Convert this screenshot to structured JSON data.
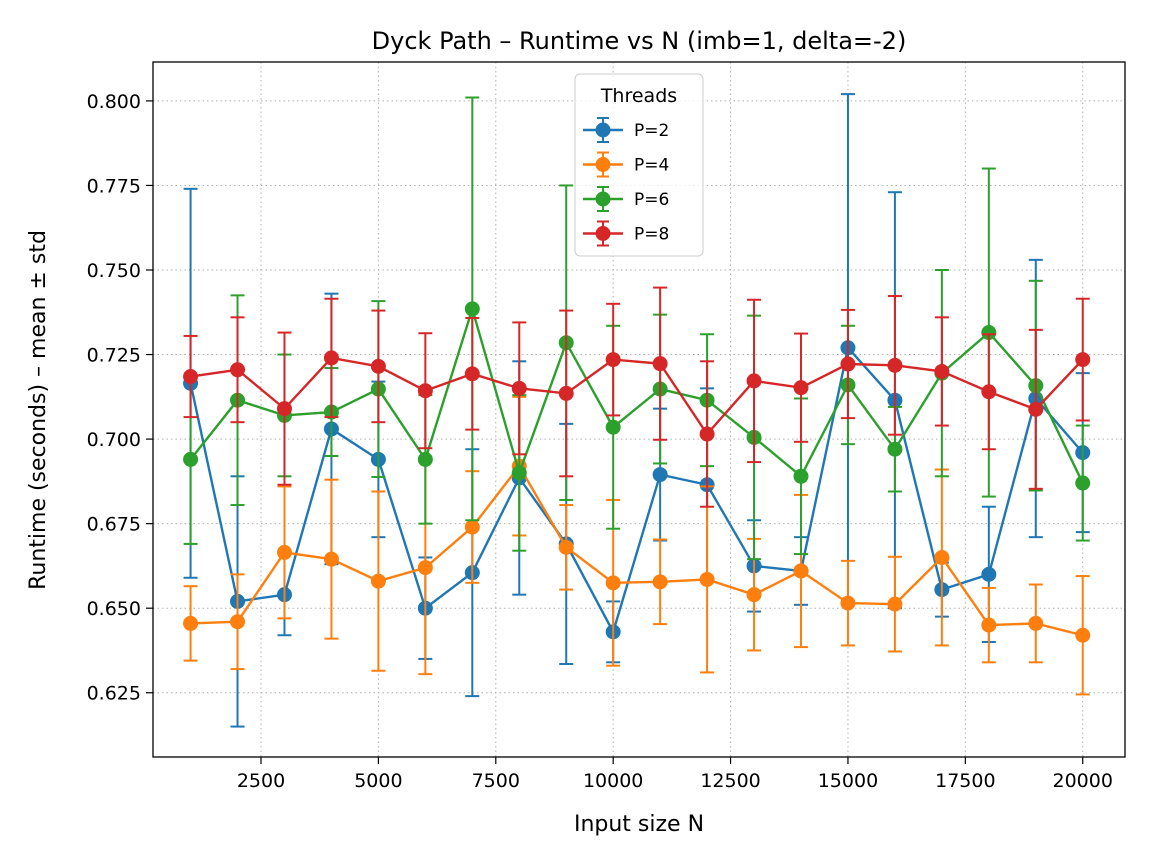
{
  "chart_data": {
    "type": "line",
    "title": "Dyck Path – Runtime vs N (imb=1, delta=-2)",
    "xlabel": "Input size N",
    "ylabel": "Runtime (seconds) – mean ± std",
    "xlim": [
      200,
      20900
    ],
    "ylim": [
      0.606,
      0.8115
    ],
    "xticks": [
      2500,
      5000,
      7500,
      10000,
      12500,
      15000,
      17500,
      20000
    ],
    "yticks": [
      0.625,
      0.65,
      0.675,
      0.7,
      0.725,
      0.75,
      0.775,
      0.8
    ],
    "ytick_labels": [
      "0.625",
      "0.650",
      "0.675",
      "0.700",
      "0.725",
      "0.750",
      "0.775",
      "0.800"
    ],
    "grid": true,
    "grid_style": "dotted",
    "legend": {
      "title": "Threads",
      "position": "upper center"
    },
    "x": [
      1000,
      2000,
      3000,
      4000,
      5000,
      6000,
      7000,
      8000,
      9000,
      10000,
      11000,
      12000,
      13000,
      14000,
      15000,
      16000,
      17000,
      18000,
      19000,
      20000
    ],
    "series": [
      {
        "name": "P=2",
        "color": "#1f77b4",
        "values": [
          0.7165,
          0.652,
          0.654,
          0.703,
          0.694,
          0.65,
          0.6605,
          0.6885,
          0.669,
          0.643,
          0.6895,
          0.6865,
          0.6625,
          0.661,
          0.727,
          0.7115,
          0.6555,
          0.66,
          0.712,
          0.696
        ],
        "std": [
          0.0575,
          0.037,
          0.012,
          0.04,
          0.023,
          0.015,
          0.0365,
          0.0345,
          0.0355,
          0.009,
          0.0195,
          0.0285,
          0.0135,
          0.01,
          0.075,
          0.0615,
          0.008,
          0.02,
          0.041,
          0.0235
        ]
      },
      {
        "name": "P=4",
        "color": "#ff7f0e",
        "values": [
          0.6455,
          0.646,
          0.6665,
          0.6645,
          0.658,
          0.662,
          0.674,
          0.692,
          0.668,
          0.6575,
          0.6578,
          0.6585,
          0.654,
          0.661,
          0.6515,
          0.6512,
          0.665,
          0.645,
          0.6455,
          0.642
        ],
        "std": [
          0.011,
          0.014,
          0.0195,
          0.0235,
          0.0265,
          0.0315,
          0.0165,
          0.0205,
          0.0125,
          0.0245,
          0.0125,
          0.0275,
          0.0165,
          0.0225,
          0.0125,
          0.014,
          0.026,
          0.011,
          0.0115,
          0.0175
        ]
      },
      {
        "name": "P=6",
        "color": "#2ca02c",
        "values": [
          0.694,
          0.7115,
          0.707,
          0.708,
          0.7148,
          0.694,
          0.7385,
          0.69,
          0.7285,
          0.7035,
          0.7148,
          0.7115,
          0.7005,
          0.689,
          0.716,
          0.697,
          0.7195,
          0.7315,
          0.7158,
          0.687
        ],
        "std": [
          0.025,
          0.031,
          0.018,
          0.013,
          0.026,
          0.019,
          0.0625,
          0.023,
          0.0465,
          0.03,
          0.022,
          0.0195,
          0.036,
          0.023,
          0.0175,
          0.0125,
          0.0305,
          0.0485,
          0.031,
          0.017
        ]
      },
      {
        "name": "P=8",
        "color": "#d62728",
        "values": [
          0.7185,
          0.7205,
          0.709,
          0.724,
          0.7215,
          0.7143,
          0.7193,
          0.715,
          0.7135,
          0.7235,
          0.7223,
          0.7015,
          0.7172,
          0.7152,
          0.7222,
          0.7218,
          0.72,
          0.714,
          0.7088,
          0.7235
        ]
      }
    ],
    "p8_std": [
      0.012,
      0.0155,
      0.0225,
      0.0175,
      0.0165,
      0.017,
      0.0165,
      0.0195,
      0.0245,
      0.0165,
      0.0225,
      0.0215,
      0.024,
      0.016,
      0.016,
      0.0205,
      0.016,
      0.017,
      0.0235,
      0.018
    ]
  }
}
